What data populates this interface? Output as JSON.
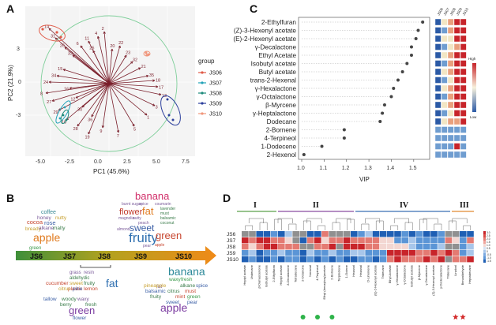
{
  "panels": {
    "a": "A",
    "b": "B",
    "c": "C",
    "d": "D"
  },
  "pca": {
    "xlabel": "PC1 (45.6%)",
    "ylabel": "PC2 (21.9%)",
    "xticks": [
      "-5.0",
      "-2.5",
      "0.0",
      "2.5",
      "5.0",
      "7.5"
    ],
    "yticks": [
      "3",
      "0",
      "-3"
    ],
    "legend_title": "group",
    "groups": [
      {
        "name": "JS06",
        "color": "#e05a47"
      },
      {
        "name": "JS07",
        "color": "#22a2b8"
      },
      {
        "name": "JS08",
        "color": "#1c8a7a"
      },
      {
        "name": "JS09",
        "color": "#2c3f9c"
      },
      {
        "name": "JS10",
        "color": "#f0957a"
      }
    ],
    "vector_labels": [
      "14",
      "31",
      "26",
      "33",
      "6",
      "11",
      "25",
      "4",
      "2",
      "20",
      "22",
      "23",
      "32",
      "21",
      "35",
      "18",
      "17",
      "13",
      "3",
      "1",
      "5",
      "7",
      "9",
      "19",
      "28",
      "10",
      "29",
      "27",
      "8",
      "24",
      "34",
      "15",
      "16",
      "12",
      "30",
      "36"
    ]
  },
  "timeline": {
    "stages": [
      "JS6",
      "JS7",
      "JS8",
      "JS9",
      "JS10"
    ],
    "upper_words": [
      {
        "t": "banana",
        "c": "#d12f6a",
        "s": 13
      },
      {
        "t": "burnt sugar",
        "c": "#7a5b9a",
        "s": 5
      },
      {
        "t": "spice",
        "c": "#7a5b9a",
        "s": 5
      },
      {
        "t": "coumarin",
        "c": "#7a5b9a",
        "s": 5
      },
      {
        "t": "flower",
        "c": "#c13a2b",
        "s": 11
      },
      {
        "t": "fat",
        "c": "#e07a1e",
        "s": 13
      },
      {
        "t": "lavender",
        "c": "#3a7c4a",
        "s": 5
      },
      {
        "t": "must",
        "c": "#3a7c4a",
        "s": 5
      },
      {
        "t": "magnolia",
        "c": "#7a5b9a",
        "s": 5
      },
      {
        "t": "nutty",
        "c": "#7a5b9a",
        "s": 5
      },
      {
        "t": "peach",
        "c": "#7a5b9a",
        "s": 5
      },
      {
        "t": "balsamic",
        "c": "#3a7c4a",
        "s": 5
      },
      {
        "t": "sweet",
        "c": "#3b5fa6",
        "s": 12
      },
      {
        "t": "coconut",
        "c": "#3a7c4a",
        "s": 5
      },
      {
        "t": "almond",
        "c": "#7a5b9a",
        "s": 5
      },
      {
        "t": "fruity",
        "c": "#2e6fb0",
        "s": 17
      },
      {
        "t": "green",
        "c": "#c7462f",
        "s": 13
      },
      {
        "t": "pear",
        "c": "#7a5b9a",
        "s": 5
      },
      {
        "t": "apple",
        "c": "#c7462f",
        "s": 5
      },
      {
        "t": "coffee",
        "c": "#3b8a96",
        "s": 7
      },
      {
        "t": "honey",
        "c": "#7a5b9a",
        "s": 6.5
      },
      {
        "t": "nutty",
        "c": "#c7a02f",
        "s": 6.5
      },
      {
        "t": "cocoa",
        "c": "#c7462f",
        "s": 7.5
      },
      {
        "t": "rose",
        "c": "#3b5fa6",
        "s": 7.5
      },
      {
        "t": "bready",
        "c": "#c7a02f",
        "s": 6.5
      },
      {
        "t": "alkane",
        "c": "#7a5b9a",
        "s": 6.5
      },
      {
        "t": "malty",
        "c": "#3a7c4a",
        "s": 6.5
      },
      {
        "t": "apple",
        "c": "#e07a1e",
        "s": 14
      },
      {
        "t": "green",
        "c": "#3a9a4a",
        "s": 6
      }
    ],
    "lower_left_words": [
      {
        "t": "grass",
        "c": "#7a5b9a",
        "s": 6
      },
      {
        "t": "resin",
        "c": "#7a5b9a",
        "s": 6
      },
      {
        "t": "aldehydic",
        "c": "#3a7c4a",
        "s": 6
      },
      {
        "t": "cucumber",
        "c": "#c7462f",
        "s": 6.5
      },
      {
        "t": "sweet",
        "c": "#c7a02f",
        "s": 6.5
      },
      {
        "t": "fruity",
        "c": "#3a7c4a",
        "s": 6.5
      },
      {
        "t": "plastic",
        "c": "#c7462f",
        "s": 6.5
      },
      {
        "t": "citrus",
        "c": "#c7a02f",
        "s": 6.5
      },
      {
        "t": "pine",
        "c": "#3b5fa6",
        "s": 6.5
      },
      {
        "t": "lemon",
        "c": "#c7462f",
        "s": 6.5
      },
      {
        "t": "fat",
        "c": "#2e6fb0",
        "s": 14
      },
      {
        "t": "tallow",
        "c": "#3b5fa6",
        "s": 6.5
      },
      {
        "t": "woody",
        "c": "#3a7c4a",
        "s": 6.5
      },
      {
        "t": "waxy",
        "c": "#7a5b9a",
        "s": 6.5
      },
      {
        "t": "berry",
        "c": "#3a7c4a",
        "s": 6.5
      },
      {
        "t": "fresh",
        "c": "#3a7c4a",
        "s": 6.5
      },
      {
        "t": "green",
        "c": "#7a3aa0",
        "s": 13
      },
      {
        "t": "flower",
        "c": "#3b5fa6",
        "s": 6.5
      }
    ],
    "lower_right_words": [
      {
        "t": "banana",
        "c": "#2e8a9a",
        "s": 14
      },
      {
        "t": "waxy",
        "c": "#3a9a4a",
        "s": 6.5
      },
      {
        "t": "fresh",
        "c": "#3a9a4a",
        "s": 6.5
      },
      {
        "t": "fat",
        "c": "#7a5b9a",
        "s": 6.5
      },
      {
        "t": "pineapple",
        "c": "#c7a02f",
        "s": 6.5
      },
      {
        "t": "alkane",
        "c": "#3a7c4a",
        "s": 6.5
      },
      {
        "t": "spice",
        "c": "#3b5fa6",
        "s": 6.5
      },
      {
        "t": "balsamic",
        "c": "#3b5fa6",
        "s": 6.5
      },
      {
        "t": "citrus",
        "c": "#3a7c4a",
        "s": 6.5
      },
      {
        "t": "must",
        "c": "#c7462f",
        "s": 6.5
      },
      {
        "t": "fruity",
        "c": "#3a7c4a",
        "s": 6.5
      },
      {
        "t": "mint",
        "c": "#c7462f",
        "s": 6.5
      },
      {
        "t": "green",
        "c": "#3a9a4a",
        "s": 6.5
      },
      {
        "t": "sweet",
        "c": "#3b5fa6",
        "s": 6.5
      },
      {
        "t": "pear",
        "c": "#3b5fa6",
        "s": 6.5
      },
      {
        "t": "apple",
        "c": "#7a3aa0",
        "s": 14
      }
    ]
  },
  "chart_data": {
    "type": "scatter",
    "title": "",
    "xlabel": "VIP",
    "ylabel": "",
    "xlim": [
      1.0,
      1.55
    ],
    "xticks": [
      "1.0",
      "1.1",
      "1.2",
      "1.3",
      "1.4",
      "1.5"
    ],
    "categories": [
      "2-Ethylfuran",
      "(Z)-3-Hexenyl acetate",
      "(E)-2-Hexenyl acetate",
      "γ-Decalactone",
      "Ethyl Acetate",
      "Isobutyl acetate",
      "Butyl acetate",
      "trans-2-Hexenal",
      "γ-Hexalactone",
      "γ-Octalactone",
      "β-Myrcene",
      "γ-Heptalactone",
      "Dodecane",
      "2-Bornene",
      "4-Terpineol",
      "1-Dodecene",
      "2-Hexenol"
    ],
    "values": [
      1.54,
      1.52,
      1.51,
      1.49,
      1.49,
      1.47,
      1.45,
      1.43,
      1.41,
      1.4,
      1.37,
      1.36,
      1.35,
      1.19,
      1.19,
      1.09,
      1.01
    ],
    "heatmap_columns": [
      "JS06",
      "JS07",
      "JS08",
      "JS09",
      "JS10"
    ],
    "heat_legend": {
      "high": "High",
      "low": "Low"
    }
  },
  "heatmap": {
    "clusters": [
      "I",
      "II",
      "IV",
      "III"
    ],
    "rows": [
      "JS6",
      "JS7",
      "JS8",
      "JS9",
      "JS10"
    ],
    "scale": [
      "3.0",
      "2.5",
      "2.0",
      "1.5",
      "1.0",
      "0.5",
      "0",
      "-0.5",
      "-1.0",
      "-1.5"
    ],
    "compounds": [
      "Heptyl acetate",
      "Undecane",
      "β-Damascenone",
      "Isobutyl acetate",
      "2-Ethylfuran",
      "Heptyl acetate",
      "δ-Decalactone",
      "Tetradecane",
      "2-Octanone",
      "Nonanal",
      "4-Terpineol",
      "Ethyl (benzyloxy)acetate",
      "2-Bornene",
      "Terpinolene",
      "1-Octene",
      "Hexanol",
      "Hexanal",
      "D-Limonene",
      "(E)-2-Hexenyl acetate",
      "Tridecane",
      "Ethyl Acetate",
      "γ-Hexalactone",
      "γ-Octalactone",
      "Isobutyl acetate",
      "β-Myrcene",
      "γ-Decalactone",
      "(Z)-3-Hexenyl acetate",
      "γ-Dodecalactone",
      "Tridecane",
      "Linalool",
      "Benzaldehyde",
      "Heptadecane"
    ]
  }
}
